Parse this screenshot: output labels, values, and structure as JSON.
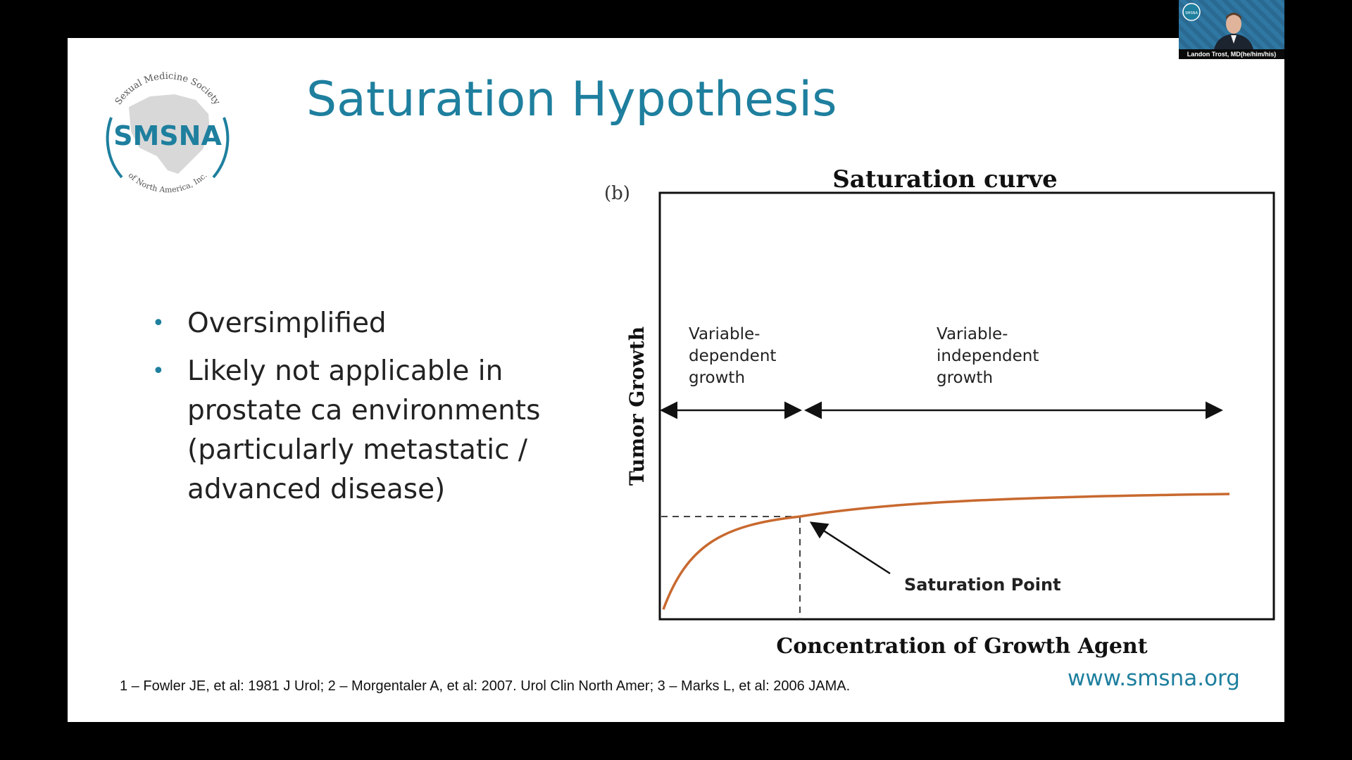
{
  "slide": {
    "title": "Saturation Hypothesis",
    "logo": {
      "top_arc": "Sexual Medicine Society",
      "center": "SMSNA",
      "bottom_arc": "of North America, Inc."
    },
    "bullets": [
      "Oversimplified",
      "Likely not applicable in prostate ca environments (particularly metastatic / advanced disease)"
    ],
    "bullet_lines": [
      [
        "Oversimplified"
      ],
      [
        "Likely not applicable in",
        "prostate ca environments",
        "(particularly metastatic /",
        "advanced disease)"
      ]
    ],
    "footnote": "1 – Fowler JE, et al: 1981 J Urol; 2 – Morgentaler A, et al: 2007. Urol Clin North Amer; 3 – Marks L, et al: 2006 JAMA.",
    "website": "www.smsna.org"
  },
  "chart_data": {
    "type": "line",
    "panel_label": "(b)",
    "title": "Saturation curve",
    "xlabel": "Concentration of Growth Agent",
    "ylabel": "Tumor Growth",
    "grid": false,
    "line_color": "#c8692f",
    "regions": [
      {
        "label_lines": [
          "Variable-",
          "dependent",
          "growth"
        ]
      },
      {
        "label_lines": [
          "Variable-",
          "independent",
          "growth"
        ]
      }
    ],
    "annotation": "Saturation Point"
  },
  "video_tile": {
    "name": "Landon Trost, MD(he/him/his)",
    "badge": "SMSNA"
  }
}
